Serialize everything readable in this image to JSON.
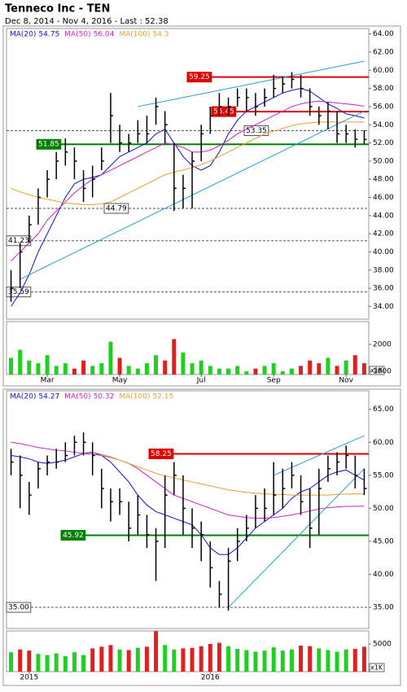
{
  "chart_data": [
    {
      "type": "ohlc",
      "title": "Tenneco Inc - TEN",
      "subtitle": "Dec 8, 2014 - Nov 4, 2016 - Last : 52.38",
      "categories": [
        null,
        null,
        null,
        null,
        "Mar",
        null,
        null,
        null,
        null,
        null,
        null,
        null,
        "May",
        null,
        null,
        null,
        null,
        null,
        null,
        null,
        null,
        "Jul",
        null,
        null,
        null,
        null,
        null,
        null,
        null,
        "Sep",
        null,
        null,
        null,
        null,
        null,
        null,
        null,
        "Nov",
        null,
        null
      ],
      "high": [
        38,
        41,
        44,
        47,
        49,
        51,
        52.5,
        51.5,
        49,
        49.5,
        51.5,
        57.5,
        54,
        53,
        54.5,
        55,
        57,
        55.5,
        52,
        48.5,
        51,
        54,
        56,
        57.5,
        57,
        58,
        58,
        57.5,
        58,
        59.5,
        59.3,
        59.8,
        59.5,
        58,
        56,
        56.5,
        55.5,
        54,
        53.5,
        53.4
      ],
      "low": [
        34.5,
        36,
        41,
        43,
        46,
        48,
        49.5,
        48,
        45.5,
        46,
        49,
        52,
        51,
        51,
        52,
        52,
        54,
        52,
        44.5,
        44.8,
        44.8,
        50,
        53,
        55,
        55,
        56,
        55.5,
        55,
        56,
        57,
        57.5,
        58,
        57,
        55,
        54,
        53.5,
        52,
        52,
        51.5,
        51.9
      ],
      "close": [
        36,
        40,
        43,
        46,
        48,
        50,
        51,
        50,
        47,
        48,
        50,
        55,
        52,
        52,
        53,
        53,
        56,
        54,
        47,
        47,
        50,
        53,
        55,
        56,
        56,
        57,
        57,
        56,
        57,
        58,
        58.5,
        59,
        58,
        56,
        55,
        55.5,
        53,
        53,
        52.4,
        52.38
      ],
      "moving_averages": [
        {
          "name": "MA(20)",
          "last": 54.75,
          "color": "#1010c8",
          "values": [
            34,
            35.5,
            37.5,
            40,
            42,
            44,
            46,
            47.5,
            48,
            48.2,
            48.5,
            49.5,
            50.5,
            51,
            51.5,
            52,
            53,
            53.5,
            52,
            50.5,
            49.5,
            49,
            49.5,
            51,
            53,
            54.5,
            55.5,
            56,
            56.5,
            57,
            57.5,
            57.8,
            58,
            57.7,
            57,
            56.3,
            55.8,
            55.2,
            55,
            54.75
          ]
        },
        {
          "name": "MA(50)",
          "last": 56.04,
          "color": "#d020d0",
          "values": [
            39,
            40,
            41,
            42,
            43.5,
            44.5,
            45.5,
            46.5,
            47.3,
            48,
            48.5,
            49,
            49.5,
            50,
            50.5,
            51,
            51.5,
            52,
            51.8,
            51.5,
            51,
            51,
            51.2,
            51.7,
            52.3,
            53,
            53.5,
            54,
            54.5,
            55,
            55.5,
            56,
            56.3,
            56.5,
            56.6,
            56.5,
            56.4,
            56.3,
            56.2,
            56.04
          ]
        },
        {
          "name": "MA(100)",
          "last": 54.3,
          "color": "#e8a030",
          "values": [
            47,
            46.6,
            46.3,
            46,
            45.8,
            45.6,
            45.4,
            45.3,
            45.2,
            45.2,
            45.3,
            45.5,
            46,
            46.5,
            47,
            47.5,
            48,
            48.5,
            48.8,
            49,
            49.3,
            49.6,
            50,
            50.5,
            51,
            51.5,
            52,
            52.5,
            53,
            53.3,
            53.6,
            53.9,
            54.1,
            54.2,
            54.3,
            54.3,
            54.3,
            54.3,
            54.3,
            54.3
          ]
        }
      ],
      "ylim": [
        32.6,
        64.6
      ],
      "yticks": [
        {
          "value": 34,
          "label": "34.00"
        },
        {
          "value": 36,
          "label": "36.00"
        },
        {
          "value": 38,
          "label": "38.00"
        },
        {
          "value": 40,
          "label": "40.00"
        },
        {
          "value": 42,
          "label": "42.00"
        },
        {
          "value": 44,
          "label": "44.00"
        },
        {
          "value": 46,
          "label": "46.00"
        },
        {
          "value": 48,
          "label": "48.00"
        },
        {
          "value": 50,
          "label": "50.00"
        },
        {
          "value": 52,
          "label": "52.00"
        },
        {
          "value": 54,
          "label": "54.00"
        },
        {
          "value": 56,
          "label": "56.00"
        },
        {
          "value": 58,
          "label": "58.00"
        },
        {
          "value": 60,
          "label": "60.00"
        },
        {
          "value": 62,
          "label": "62.00"
        },
        {
          "value": 64,
          "label": "64.00"
        }
      ],
      "levels": [
        {
          "value": 59.25,
          "color": "#e00000",
          "style": "solid"
        },
        {
          "value": 55.45,
          "color": "#e00000",
          "style": "solid"
        },
        {
          "value": 53.35,
          "color": "#555555",
          "style": "dashed"
        },
        {
          "value": 51.85,
          "color": "#008000",
          "style": "solid"
        },
        {
          "value": 44.79,
          "color": "#555555",
          "style": "dashed"
        },
        {
          "value": 41.23,
          "color": "#555555",
          "style": "dashed"
        },
        {
          "value": 35.59,
          "color": "#555555",
          "style": "dashed"
        }
      ],
      "trendlines": [
        {
          "x": [
            1,
            39
          ],
          "y": [
            37,
            55.5
          ]
        },
        {
          "x": [
            14,
            39
          ],
          "y": [
            56,
            61
          ]
        }
      ],
      "trendline_color": "#20a0e0",
      "up_color": "#20d020",
      "down_color": "#e02020",
      "volume": {
        "values": [
          1500,
          1800,
          1400,
          1300,
          1600,
          1200,
          1300,
          1100,
          1400,
          1200,
          1300,
          2100,
          1500,
          1200,
          1100,
          1300,
          1600,
          1400,
          2200,
          1700,
          1300,
          1400,
          1200,
          1100,
          1100,
          1200,
          1000,
          1100,
          1200,
          1300,
          1000,
          1100,
          1200,
          1400,
          1300,
          1500,
          1200,
          1400,
          1600,
          1300
        ],
        "ylim": [
          880,
          2850
        ],
        "yticks": [
          1000,
          2000
        ],
        "unit": "x1K"
      }
    },
    {
      "type": "ohlc",
      "categories": [
        null,
        null,
        "2015",
        null,
        null,
        null,
        null,
        null,
        null,
        null,
        null,
        null,
        null,
        null,
        null,
        null,
        null,
        null,
        null,
        null,
        null,
        null,
        "2016",
        null,
        null,
        null,
        null,
        null,
        null,
        null,
        null,
        null,
        null,
        null,
        null,
        null,
        null,
        null,
        null,
        null
      ],
      "high": [
        59,
        58,
        54,
        57,
        58,
        59,
        60,
        61,
        61.5,
        60,
        56,
        53,
        53,
        51,
        52,
        49,
        47,
        55,
        57,
        55,
        50,
        48,
        45,
        39,
        44,
        47,
        49,
        52,
        53,
        57,
        56,
        57,
        55,
        53,
        56,
        58,
        58.5,
        59.5,
        58,
        56
      ],
      "low": [
        55,
        50,
        49,
        53,
        55,
        56,
        57,
        58,
        58,
        55,
        50,
        48,
        49,
        45,
        46,
        44,
        39,
        44,
        52,
        46,
        44,
        42,
        38,
        35,
        34.5,
        42,
        45,
        47,
        48,
        49,
        50,
        53,
        49,
        44,
        46,
        54,
        55,
        56,
        53,
        52
      ],
      "close": [
        57,
        55,
        52,
        56,
        57,
        57,
        58,
        60,
        60,
        58,
        53,
        51,
        51,
        47,
        49,
        46,
        45,
        52,
        55,
        50,
        47,
        46,
        41,
        37,
        42,
        45,
        47,
        50,
        50,
        52,
        53,
        55,
        51,
        47,
        53,
        56,
        57,
        58,
        55,
        53
      ],
      "moving_averages": [
        {
          "name": "MA(20)",
          "last": 54.27,
          "color": "#1010c8",
          "values": [
            58,
            57.8,
            57.5,
            57,
            56.8,
            57,
            57.3,
            57.8,
            58.3,
            58.5,
            58,
            57,
            55.5,
            54,
            52,
            50.5,
            49.5,
            49,
            48.5,
            48,
            47.5,
            46,
            44,
            43,
            43,
            44,
            45.5,
            47,
            48,
            49,
            50,
            51.5,
            52.5,
            53,
            54,
            55,
            55.5,
            55.8,
            55,
            54.27
          ]
        },
        {
          "name": "MA(50)",
          "last": 50.32,
          "color": "#d020d0",
          "values": [
            60,
            59.8,
            59.5,
            59.2,
            59,
            58.8,
            58.7,
            58.5,
            58.3,
            58.2,
            58,
            57.7,
            57.3,
            56.8,
            56,
            55,
            54,
            53,
            52,
            51.5,
            51,
            50.5,
            50,
            49.5,
            49,
            48.8,
            48.6,
            48.5,
            48.5,
            48.6,
            48.8,
            49,
            49.3,
            49.6,
            49.9,
            50.1,
            50.2,
            50.3,
            50.3,
            50.32
          ]
        },
        {
          "name": "MA(100)",
          "last": 52.15,
          "color": "#e8a030",
          "values": [
            null,
            null,
            null,
            null,
            null,
            null,
            null,
            null,
            null,
            58.5,
            58.2,
            57.8,
            57.3,
            56.8,
            56.3,
            55.8,
            55.3,
            54.9,
            54.6,
            54.3,
            54,
            53.7,
            53.4,
            53.1,
            52.8,
            52.6,
            52.4,
            52.3,
            52.2,
            52.1,
            52.1,
            52,
            52,
            52,
            52,
            52,
            52.1,
            52.15,
            52.2,
            52.15
          ]
        }
      ],
      "ylim": [
        31.8,
        67.8
      ],
      "yticks": [
        {
          "value": 35,
          "label": "35.00"
        },
        {
          "value": 40,
          "label": "40.00"
        },
        {
          "value": 45,
          "label": "45.00"
        },
        {
          "value": 50,
          "label": "50.00"
        },
        {
          "value": 55,
          "label": "55.00"
        },
        {
          "value": 60,
          "label": "60.00"
        },
        {
          "value": 65,
          "label": "65.00"
        }
      ],
      "levels": [
        {
          "value": 58.25,
          "color": "#e00000",
          "style": "solid"
        },
        {
          "value": 45.92,
          "color": "#008000",
          "style": "solid"
        },
        {
          "value": 35,
          "label": "35.00",
          "color": "#555555",
          "style": "dashed"
        }
      ],
      "trendlines": [
        {
          "x": [
            24,
            39
          ],
          "y": [
            35,
            56
          ]
        },
        {
          "x": [
            29,
            39
          ],
          "y": [
            55,
            61
          ]
        }
      ],
      "trendline_color": "#20a0e0",
      "up_color": "#20d020",
      "down_color": "#e02020",
      "volume": {
        "values": [
          3500,
          4000,
          3800,
          3200,
          3000,
          3300,
          2800,
          3500,
          3000,
          4200,
          4500,
          4800,
          4000,
          3900,
          4300,
          4500,
          7300,
          4800,
          4000,
          4200,
          4300,
          4600,
          5000,
          5200,
          4600,
          4100,
          3900,
          3600,
          3800,
          4400,
          3800,
          4000,
          4700,
          4600,
          4200,
          3900,
          3600,
          4000,
          4100,
          4500
        ],
        "ylim": [
          0,
          7350
        ],
        "yticks": [
          5000
        ],
        "unit": "x1K"
      }
    }
  ]
}
